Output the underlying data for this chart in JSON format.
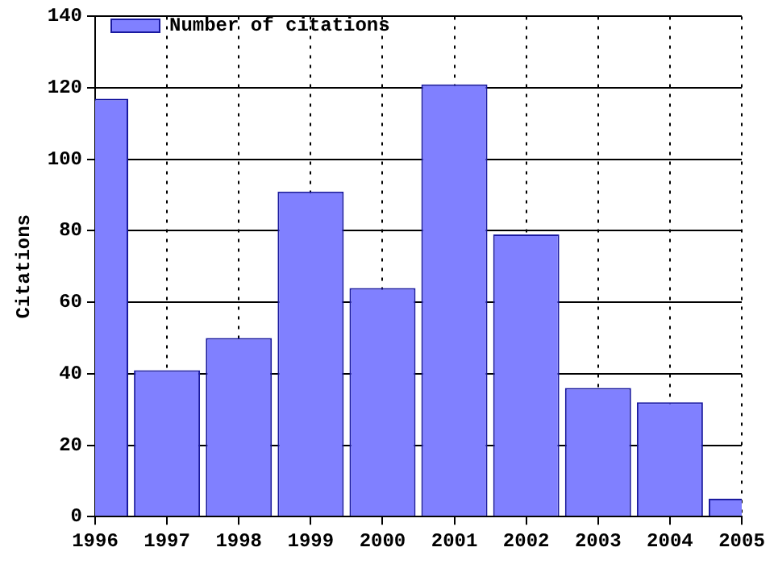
{
  "chart_data": {
    "type": "bar",
    "categories": [
      "1996",
      "1997",
      "1998",
      "1999",
      "2000",
      "2001",
      "2002",
      "2003",
      "2004",
      "2005"
    ],
    "series": [
      {
        "name": "Number of citations",
        "color": "#8080ff",
        "values": [
          117,
          41,
          50,
          91,
          64,
          121,
          79,
          36,
          32,
          5
        ]
      }
    ],
    "ylabel": "Citations",
    "ylim": [
      0,
      140
    ],
    "yticks": [
      0,
      20,
      40,
      60,
      80,
      100,
      120,
      140
    ],
    "grid": true,
    "legend": "top left"
  }
}
